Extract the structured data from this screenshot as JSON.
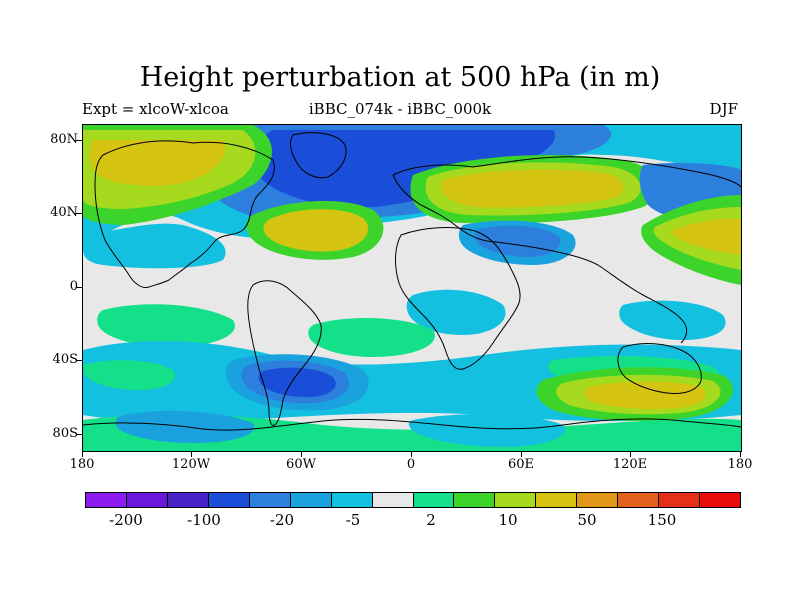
{
  "title": "Height perturbation at 500 hPa (in m)",
  "subtitle_left": "Expt = xlcoW-xlcoa",
  "subtitle_center": "iBBC_074k - iBBC_000k",
  "subtitle_right": "DJF",
  "lat_labels": [
    "80N",
    "40N",
    "0",
    "40S",
    "80S"
  ],
  "lon_labels": [
    "180",
    "120W",
    "60W",
    "0",
    "60E",
    "120E",
    "180"
  ],
  "colorbar": {
    "colors": [
      "#8c1cef",
      "#6a18dc",
      "#4a23c8",
      "#1a4ed8",
      "#2c7fdc",
      "#1aa2df",
      "#14c0e0",
      "#e8e8e8",
      "#14e08a",
      "#3cd42a",
      "#a6da1e",
      "#d6c412",
      "#e09616",
      "#e0601c",
      "#e43018",
      "#e80c0c"
    ],
    "labels": [
      "-200",
      "-100",
      "-20",
      "-5",
      "2",
      "10",
      "50",
      "150"
    ]
  },
  "contour_colors": {
    "neutral": "#e8e8e8",
    "cyan": "#14c0e0",
    "lightblue": "#1aa2df",
    "blue": "#2c7fdc",
    "darkblue": "#1a4ed8",
    "green": "#14e08a",
    "darkgreen": "#3cd42a",
    "lime": "#a6da1e",
    "gold": "#d6c412",
    "orange": "#e09616"
  }
}
